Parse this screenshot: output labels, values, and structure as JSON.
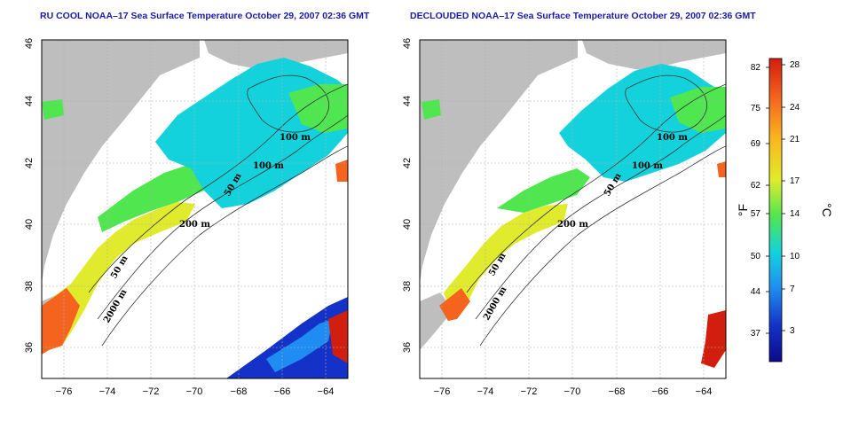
{
  "panels": [
    {
      "id": "left",
      "title": "RU COOL NOAA–17 Sea Surface Temperature October 29, 2007 02:36 GMT"
    },
    {
      "id": "right",
      "title": "DECLOUDED NOAA–17 Sea Surface Temperature October 29, 2007 02:36 GMT"
    }
  ],
  "axes": {
    "lon_range": [
      -77,
      -63
    ],
    "lat_range": [
      35,
      46
    ],
    "lon_ticks": [
      "−76",
      "−74",
      "−72",
      "−70",
      "−68",
      "−66",
      "−64"
    ],
    "lat_ticks": [
      "36",
      "38",
      "40",
      "42",
      "44",
      "46"
    ]
  },
  "contour_labels": {
    "left": [
      "100 m",
      "100 m",
      "50 m",
      "200 m",
      "50 m",
      "2000 m"
    ],
    "right": [
      "100 m",
      "100 m",
      "50 m",
      "200 m",
      "50 m",
      "2000 m"
    ]
  },
  "colorbar": {
    "fahrenheit_ticks": [
      "82",
      "75",
      "69",
      "62",
      "57",
      "50",
      "44",
      "37"
    ],
    "celsius_ticks": [
      "28",
      "24",
      "21",
      "17",
      "14",
      "10",
      "7",
      "3"
    ],
    "left_unit": "°F",
    "right_unit": "°C"
  },
  "colors": {
    "land": "#bebebe",
    "cloud": "#ffffff",
    "title": "#1a1aa6",
    "colorbar_stops": [
      "#d21e0f",
      "#f5641e",
      "#fab41e",
      "#e1eb2d",
      "#50e650",
      "#14d2dc",
      "#1e8cf0",
      "#1432c8",
      "#0a0a8c"
    ]
  }
}
